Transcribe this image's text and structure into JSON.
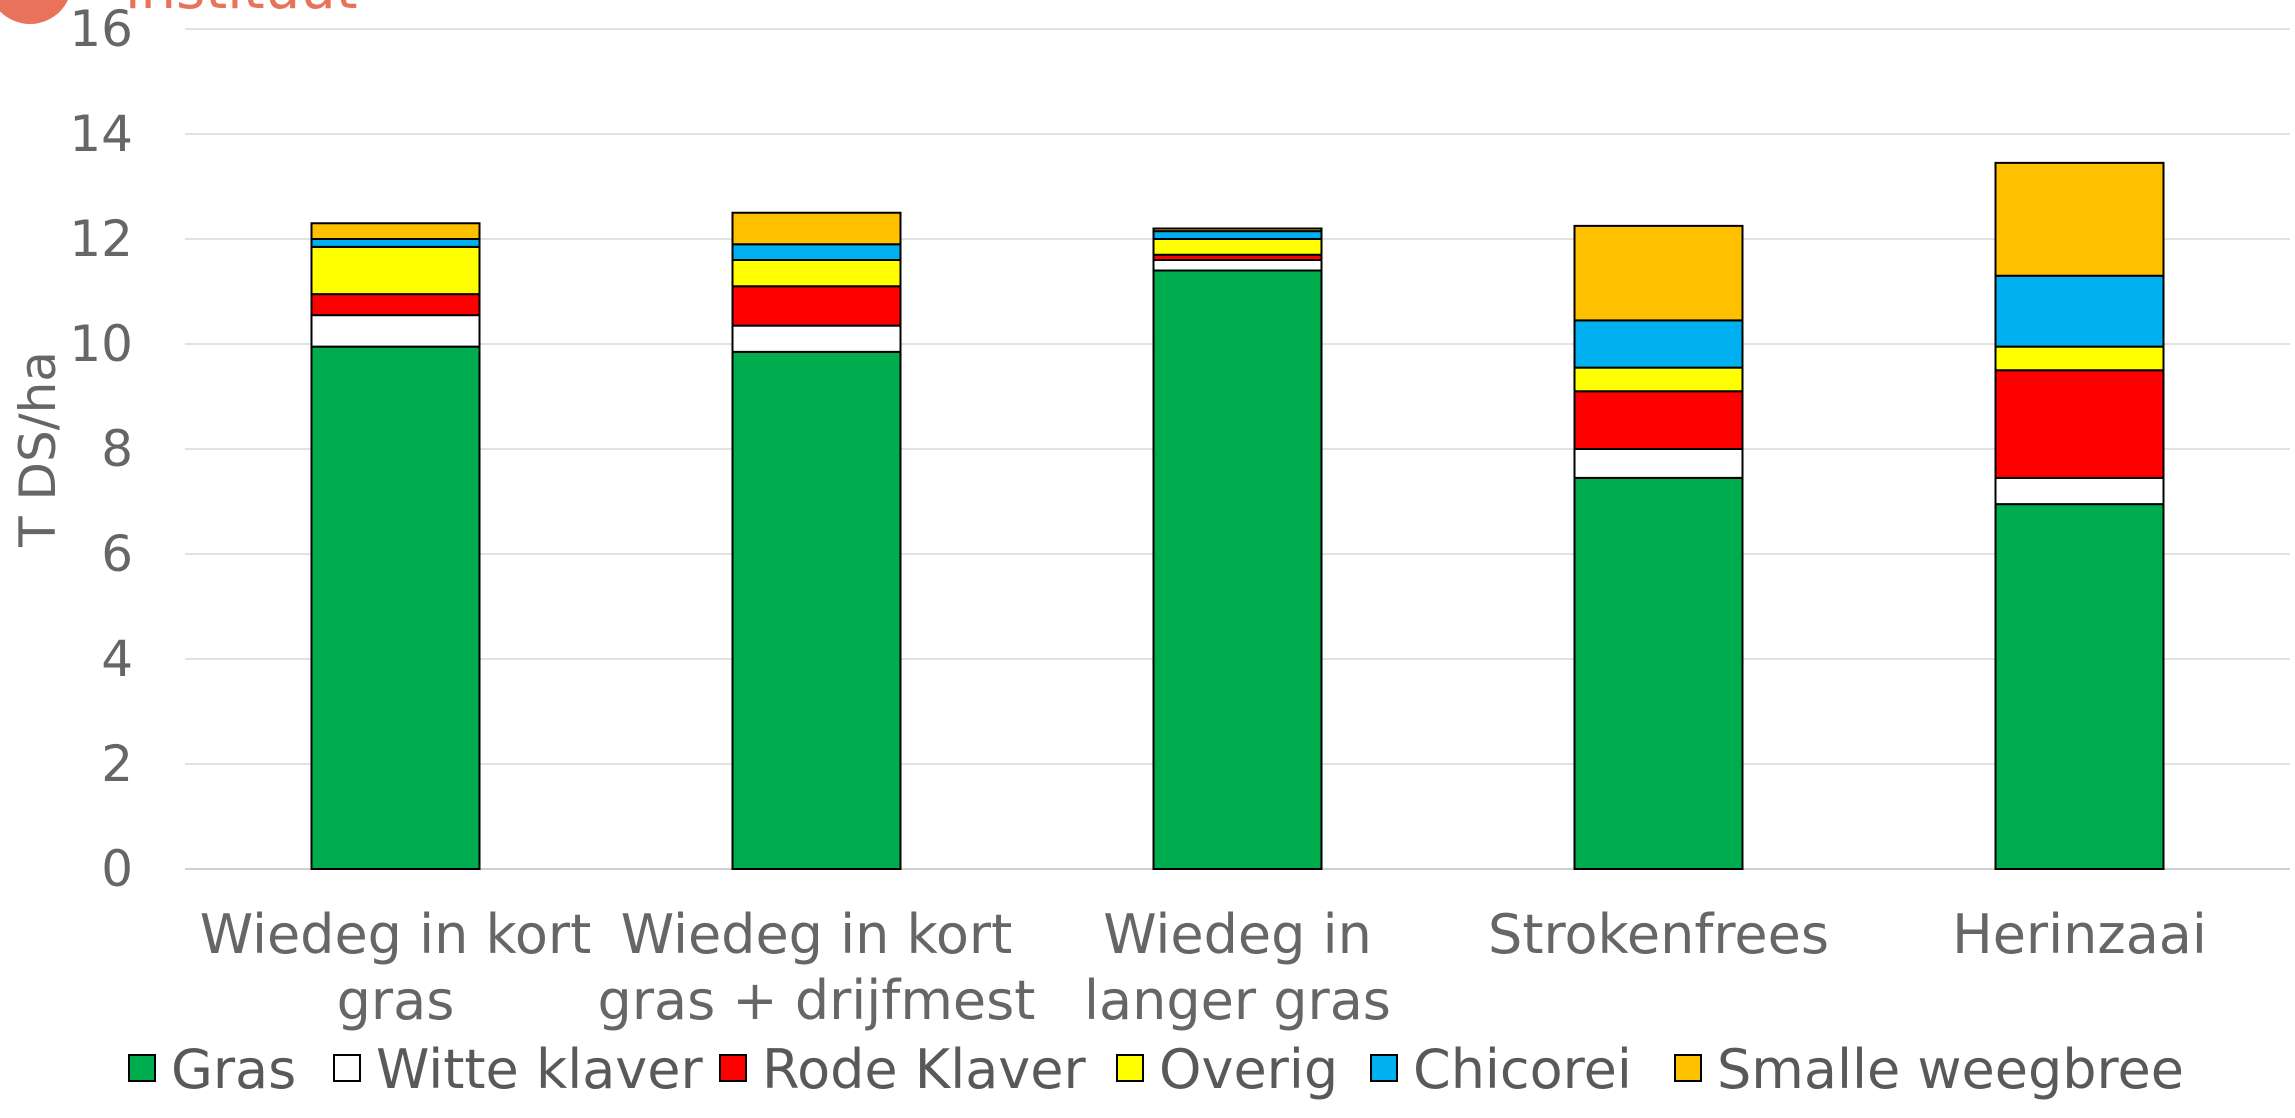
{
  "header": {
    "brand_fragment": "instituut"
  },
  "chart_data": {
    "type": "bar",
    "stacked": true,
    "title": "",
    "xlabel": "",
    "ylabel": "T DS/ha",
    "ylim": [
      0,
      16
    ],
    "yticks": [
      0,
      2,
      4,
      6,
      8,
      10,
      12,
      14,
      16
    ],
    "grid": true,
    "legend_position": "bottom",
    "categories": [
      [
        "Wiedeg in kort",
        "gras"
      ],
      [
        "Wiedeg in kort",
        "gras + drijfmest"
      ],
      [
        "Wiedeg in",
        "langer gras"
      ],
      [
        "Strokenfrees"
      ],
      [
        "Herinzaai"
      ]
    ],
    "series": [
      {
        "name": "Gras",
        "color": "#00ad4e",
        "values": [
          9.95,
          9.85,
          11.4,
          7.45,
          6.95
        ]
      },
      {
        "name": "Witte klaver",
        "color": "#ffffff",
        "values": [
          0.6,
          0.5,
          0.2,
          0.55,
          0.5
        ]
      },
      {
        "name": "Rode Klaver",
        "color": "#ff0000",
        "values": [
          0.4,
          0.75,
          0.1,
          1.1,
          2.05
        ]
      },
      {
        "name": "Overig",
        "color": "#ffff00",
        "values": [
          0.9,
          0.5,
          0.3,
          0.45,
          0.45
        ]
      },
      {
        "name": "Chicorei",
        "color": "#00b0f0",
        "values": [
          0.15,
          0.3,
          0.15,
          0.9,
          1.35
        ]
      },
      {
        "name": "Smalle weegbree",
        "color": "#ffc000",
        "values": [
          0.3,
          0.6,
          0.05,
          1.8,
          2.15
        ]
      }
    ]
  }
}
